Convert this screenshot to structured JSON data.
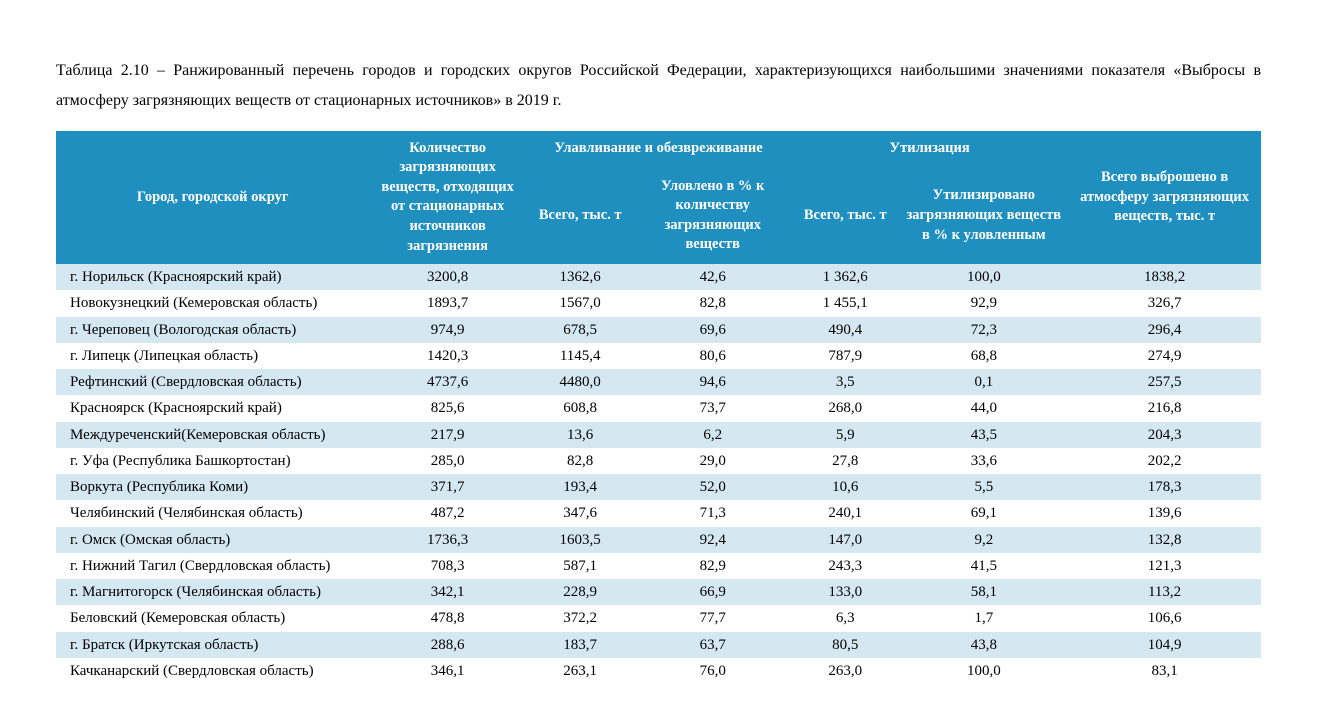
{
  "caption": "Таблица 2.10 – Ранжированный перечень городов и городских округов Российской Федерации, характеризующихся наибольшими значениями показателя «Выбросы в атмосферу загрязняющих веществ от стационарных источников» в 2019 г.",
  "table": {
    "type": "table",
    "colors": {
      "header_bg": "#1f8fbf",
      "header_text": "#ffffff",
      "row_a_bg": "#d5e8f2",
      "row_b_bg": "#ffffff",
      "body_text": "#000000"
    },
    "fonts": {
      "caption_size_pt": 12,
      "header_size_pt": 11,
      "body_size_pt": 11,
      "family": "Times New Roman"
    },
    "column_widths_pct": [
      26,
      13,
      9,
      13,
      9,
      14,
      16
    ],
    "header": {
      "row1": {
        "city": "Город, городской округ",
        "qty": "Количество загрязняющих веществ, отходящих от стационарных источников загрязнения",
        "capture_group": "Улавливание и обезвреживание",
        "util_group": "Утилизация",
        "emitted": "Всего выброшено в атмосферу загрязняющих веществ, тыс. т"
      },
      "row2": {
        "capture_total": "Всего, тыс. т",
        "capture_pct": "Уловлено в % к количеству загрязняющих веществ",
        "util_total": "Всего, тыс. т",
        "util_pct": "Утилизировано загрязняющих веществ в % к уловленным"
      }
    },
    "rows": [
      {
        "city": "г. Норильск (Красноярский край)",
        "qty": "3200,8",
        "cap_t": "1362,6",
        "cap_p": "42,6",
        "ut_t": "1 362,6",
        "ut_p": "100,0",
        "emit": "1838,2"
      },
      {
        "city": "Новокузнецкий (Кемеровская область)",
        "qty": "1893,7",
        "cap_t": "1567,0",
        "cap_p": "82,8",
        "ut_t": "1 455,1",
        "ut_p": "92,9",
        "emit": "326,7"
      },
      {
        "city": "г. Череповец (Вологодская область)",
        "qty": "974,9",
        "cap_t": "678,5",
        "cap_p": "69,6",
        "ut_t": "490,4",
        "ut_p": "72,3",
        "emit": "296,4"
      },
      {
        "city": "г. Липецк (Липецкая область)",
        "qty": "1420,3",
        "cap_t": "1145,4",
        "cap_p": "80,6",
        "ut_t": "787,9",
        "ut_p": "68,8",
        "emit": "274,9"
      },
      {
        "city": "Рефтинский (Свердловская область)",
        "qty": "4737,6",
        "cap_t": "4480,0",
        "cap_p": "94,6",
        "ut_t": "3,5",
        "ut_p": "0,1",
        "emit": "257,5"
      },
      {
        "city": "Красноярск (Красноярский край)",
        "qty": "825,6",
        "cap_t": "608,8",
        "cap_p": "73,7",
        "ut_t": "268,0",
        "ut_p": "44,0",
        "emit": "216,8"
      },
      {
        "city": "Междуреченский(Кемеровская область)",
        "qty": "217,9",
        "cap_t": "13,6",
        "cap_p": "6,2",
        "ut_t": "5,9",
        "ut_p": "43,5",
        "emit": "204,3"
      },
      {
        "city": "г. Уфа (Республика Башкортостан)",
        "qty": "285,0",
        "cap_t": "82,8",
        "cap_p": "29,0",
        "ut_t": "27,8",
        "ut_p": "33,6",
        "emit": "202,2"
      },
      {
        "city": "Воркута (Республика Коми)",
        "qty": "371,7",
        "cap_t": "193,4",
        "cap_p": "52,0",
        "ut_t": "10,6",
        "ut_p": "5,5",
        "emit": "178,3"
      },
      {
        "city": "Челябинский (Челябинская область)",
        "qty": "487,2",
        "cap_t": "347,6",
        "cap_p": "71,3",
        "ut_t": "240,1",
        "ut_p": "69,1",
        "emit": "139,6"
      },
      {
        "city": "г. Омск (Омская область)",
        "qty": "1736,3",
        "cap_t": "1603,5",
        "cap_p": "92,4",
        "ut_t": "147,0",
        "ut_p": "9,2",
        "emit": "132,8"
      },
      {
        "city": "г. Нижний Тагил (Свердловская область)",
        "qty": "708,3",
        "cap_t": "587,1",
        "cap_p": "82,9",
        "ut_t": "243,3",
        "ut_p": "41,5",
        "emit": "121,3"
      },
      {
        "city": "г. Магнитогорск (Челябинская область)",
        "qty": "342,1",
        "cap_t": "228,9",
        "cap_p": "66,9",
        "ut_t": "133,0",
        "ut_p": "58,1",
        "emit": "113,2"
      },
      {
        "city": "Беловский (Кемеровская область)",
        "qty": "478,8",
        "cap_t": "372,2",
        "cap_p": "77,7",
        "ut_t": "6,3",
        "ut_p": "1,7",
        "emit": "106,6"
      },
      {
        "city": "г. Братск (Иркутская область)",
        "qty": "288,6",
        "cap_t": "183,7",
        "cap_p": "63,7",
        "ut_t": "80,5",
        "ut_p": "43,8",
        "emit": "104,9"
      },
      {
        "city": "Качканарский (Свердловская область)",
        "qty": "346,1",
        "cap_t": "263,1",
        "cap_p": "76,0",
        "ut_t": "263,0",
        "ut_p": "100,0",
        "emit": "83,1"
      }
    ]
  }
}
